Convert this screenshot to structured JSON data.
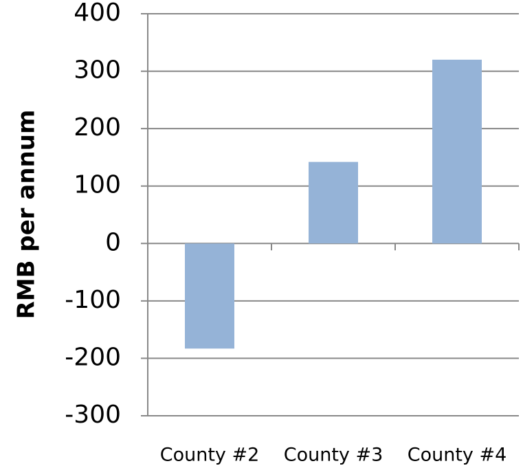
{
  "chart_data": {
    "type": "bar",
    "y_label": "RMB per annum",
    "categories": [
      "County #2",
      "County #3",
      "County #4"
    ],
    "values": [
      -183,
      142,
      320
    ],
    "color": "#95b3d7",
    "ylim": [
      -300,
      400
    ],
    "yticks": [
      -300,
      -200,
      -100,
      0,
      100,
      200,
      300,
      400
    ],
    "grid": true
  }
}
